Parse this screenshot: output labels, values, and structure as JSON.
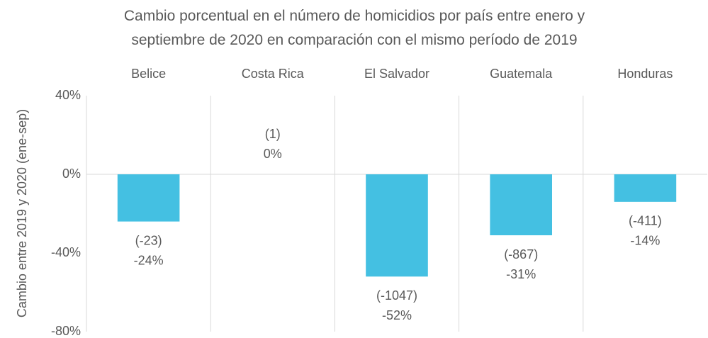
{
  "chart_data": {
    "type": "bar",
    "title": "Cambio porcentual en el número de homicidios por país entre enero y septiembre de 2020 en comparación con el mismo período de 2019",
    "y_label": "Cambio entre 2019 y 2020 (ene-sep)",
    "categories": [
      "Belice",
      "Costa Rica",
      "El Salvador",
      "Guatemala",
      "Honduras"
    ],
    "values": [
      -24,
      0,
      -52,
      -31,
      -14
    ],
    "value_labels": [
      "-24%",
      "0%",
      "-52%",
      "-31%",
      "-14%"
    ],
    "count_labels": [
      "(-23)",
      "(1)",
      "(-1047)",
      "(-867)",
      "(-411)"
    ],
    "color": "#44c0e2",
    "ylim": [
      -80,
      40
    ],
    "yticks": [
      {
        "value": 40,
        "label": "40%"
      },
      {
        "value": 0,
        "label": "0%"
      },
      {
        "value": -40,
        "label": "-40%"
      },
      {
        "value": -80,
        "label": "-80%"
      }
    ],
    "grid": false
  }
}
